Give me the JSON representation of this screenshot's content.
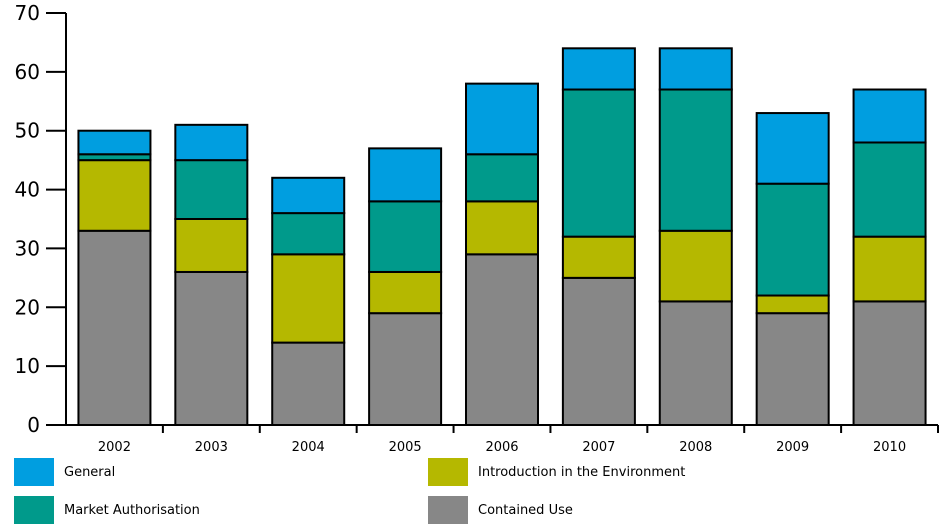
{
  "chart_data": {
    "type": "bar",
    "stacked": true,
    "categories": [
      "2002",
      "2003",
      "2004",
      "2005",
      "2006",
      "2007",
      "2008",
      "2009",
      "2010"
    ],
    "series": [
      {
        "name": "Contained Use",
        "color": "#878787",
        "values": [
          33,
          26,
          14,
          19,
          29,
          25,
          21,
          19,
          21
        ]
      },
      {
        "name": "Introduction in the Environment",
        "color": "#b5b800",
        "values": [
          12,
          9,
          15,
          7,
          9,
          7,
          12,
          3,
          11
        ]
      },
      {
        "name": "Market Authorisation",
        "color": "#009a8b",
        "values": [
          1,
          10,
          7,
          12,
          8,
          25,
          24,
          19,
          16
        ]
      },
      {
        "name": "General",
        "color": "#009ee0",
        "values": [
          4,
          6,
          6,
          9,
          12,
          7,
          7,
          12,
          9
        ]
      }
    ],
    "y_ticks": [
      "0",
      "10",
      "20",
      "30",
      "40",
      "50",
      "60",
      "70"
    ],
    "ylim": [
      0,
      70
    ],
    "grid": false,
    "legend_position": "bottom"
  },
  "legend": {
    "general": "General",
    "introduction": "Introduction in the Environment",
    "market": "Market Authorisation",
    "contained": "Contained Use"
  }
}
